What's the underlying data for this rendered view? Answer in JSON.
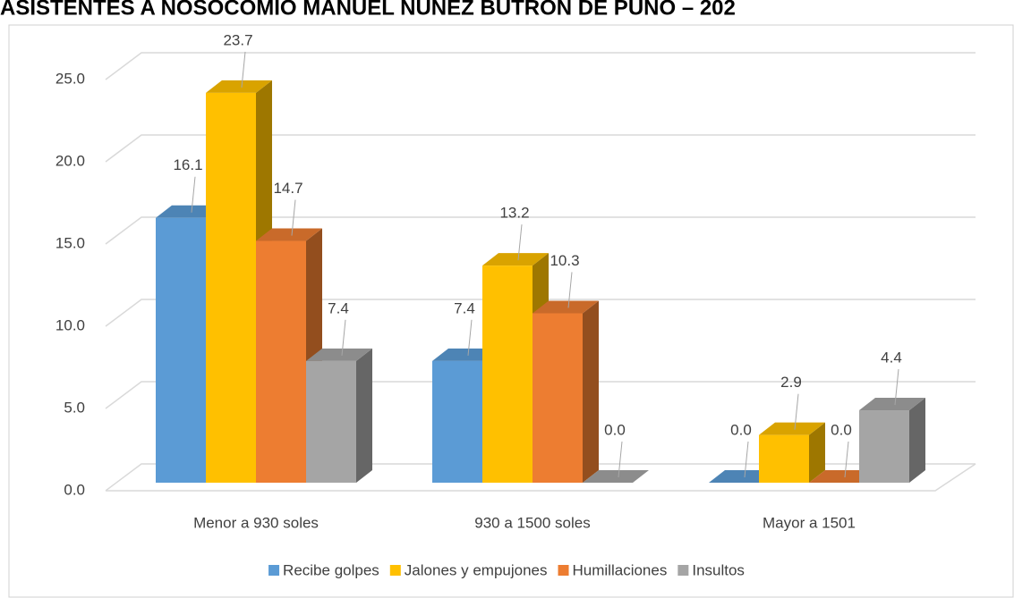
{
  "chart_data": {
    "type": "bar3d",
    "title": "ASISTENTES A NOSOCOMIO MANUEL NUÑEZ BUTRON DE PUNO – 202",
    "categories": [
      "Menor a 930 soles",
      "930 a 1500 soles",
      "Mayor a 1501"
    ],
    "series": [
      {
        "name": "Recibe golpes",
        "color": "#5b9bd5",
        "values": [
          16.1,
          7.4,
          0
        ],
        "value_labels": [
          "16.1",
          "7.4",
          "0.0"
        ]
      },
      {
        "name": "Jalones y empujones",
        "color": "#ffc000",
        "values": [
          23.7,
          13.2,
          2.9
        ],
        "value_labels": [
          "23.7",
          "13.2",
          "2.9"
        ]
      },
      {
        "name": "Humillaciones",
        "color": "#ed7d31",
        "values": [
          14.7,
          10.3,
          0
        ],
        "value_labels": [
          "14.7",
          "10.3",
          "0.0"
        ]
      },
      {
        "name": "Insultos",
        "color": "#a5a5a5",
        "values": [
          7.4,
          0,
          4.4
        ],
        "value_labels": [
          "7.4",
          "0.0",
          "4.4"
        ]
      }
    ],
    "ylim": [
      0,
      25
    ],
    "yticks": [
      {
        "value": 0,
        "label": "0.0"
      },
      {
        "value": 5,
        "label": "5.0"
      },
      {
        "value": 10,
        "label": "10.0"
      },
      {
        "value": 15,
        "label": "15.0"
      },
      {
        "value": 20,
        "label": "20.0"
      },
      {
        "value": 25,
        "label": "25.0"
      }
    ],
    "grid": true,
    "legend": "bottom"
  }
}
